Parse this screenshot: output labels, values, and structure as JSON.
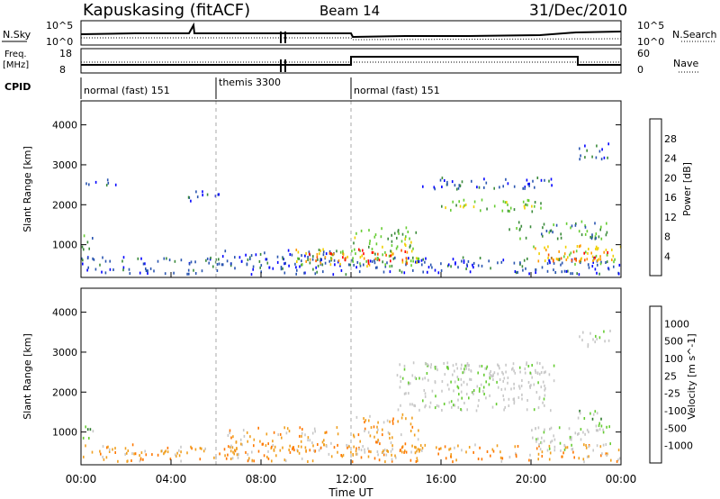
{
  "header": {
    "station": "Kapuskasing (fitACF)",
    "beam": "Beam 14",
    "date": "31/Dec/2010"
  },
  "top_panels": {
    "nsky_label": "N.Sky",
    "nsearch_label": "N.Search",
    "noise_ticks": [
      "10^5",
      "10^0"
    ],
    "freq_label_1": "Freq.",
    "freq_label_2": "[MHz]",
    "freq_ticks": [
      "18",
      "8"
    ],
    "nave_label": "Nave",
    "nave_ticks": [
      "60",
      "0"
    ],
    "cpid_label": "CPID"
  },
  "cpid_segments": [
    {
      "label": "normal (fast) 151",
      "start_h": 0,
      "end_h": 6
    },
    {
      "label": "themis 3300",
      "start_h": 6,
      "end_h": 12
    },
    {
      "label": "normal (fast) 151",
      "start_h": 12,
      "end_h": 24
    }
  ],
  "colors": {
    "power": [
      "#0000ff",
      "#2a55b0",
      "#3a8a3a",
      "#66cc33",
      "#f0d000",
      "#ff9900",
      "#ff5500",
      "#ff0000"
    ],
    "velocity": [
      "#0a14d8",
      "#2255cc",
      "#2c7a2c",
      "#66cc33",
      "#c8c8c8",
      "#c8c8c8",
      "#f0a020",
      "#ff7700",
      "#ff3300",
      "#ff0000"
    ],
    "ground_scatter": "#c8c8c8"
  },
  "chart_data": [
    {
      "type": "heatmap",
      "name": "power",
      "ylabel": "Slant Range [km]",
      "xlabel": "Time UT",
      "x_ticks": [
        "00:00",
        "04:00",
        "08:00",
        "12:00",
        "16:00",
        "20:00",
        "00:00"
      ],
      "x_range_h": [
        0,
        24
      ],
      "y_ticks": [
        "1000",
        "2000",
        "3000",
        "4000"
      ],
      "y_tick_values": [
        1000,
        2000,
        3000,
        4000
      ],
      "ylim": [
        180,
        4600
      ],
      "colorbar_label": "Power [dB]",
      "colorbar_ticks": [
        "4",
        "8",
        "12",
        "16",
        "20",
        "24",
        "28"
      ],
      "colorbar_range": [
        0,
        32
      ],
      "dashed_times_h": [
        6,
        12
      ],
      "regions": [
        {
          "t0": 0,
          "t1": 24,
          "r0": 220,
          "r1": 650,
          "level": 1
        },
        {
          "t0": 0,
          "t1": 0.6,
          "r0": 800,
          "r1": 1200,
          "level": 2
        },
        {
          "t0": 0.2,
          "t1": 1.6,
          "r0": 2450,
          "r1": 2650,
          "level": 1
        },
        {
          "t0": 4.5,
          "t1": 6.2,
          "r0": 2050,
          "r1": 2300,
          "level": 1
        },
        {
          "t0": 6.2,
          "t1": 11.5,
          "r0": 450,
          "r1": 850,
          "level": 1
        },
        {
          "t0": 9.5,
          "t1": 12.5,
          "r0": 450,
          "r1": 850,
          "level": 4
        },
        {
          "t0": 10,
          "t1": 12,
          "r0": 550,
          "r1": 750,
          "level": 6
        },
        {
          "t0": 12,
          "t1": 15,
          "r0": 420,
          "r1": 1400,
          "level": 3
        },
        {
          "t0": 12.3,
          "t1": 14.5,
          "r0": 450,
          "r1": 850,
          "level": 6
        },
        {
          "t0": 15,
          "t1": 21,
          "r0": 2350,
          "r1": 2650,
          "level": 1
        },
        {
          "t0": 16,
          "t1": 20.5,
          "r0": 1750,
          "r1": 2100,
          "level": 3
        },
        {
          "t0": 19,
          "t1": 23.5,
          "r0": 1100,
          "r1": 1550,
          "level": 2
        },
        {
          "t0": 20,
          "t1": 24,
          "r0": 450,
          "r1": 950,
          "level": 4
        },
        {
          "t0": 20.5,
          "t1": 23.5,
          "r0": 550,
          "r1": 800,
          "level": 6
        },
        {
          "t0": 22,
          "t1": 23.5,
          "r0": 3100,
          "r1": 3500,
          "level": 1
        }
      ]
    },
    {
      "type": "heatmap",
      "name": "velocity",
      "ylabel": "Slant Range [km]",
      "xlabel": "Time UT",
      "x_ticks": [
        "00:00",
        "04:00",
        "08:00",
        "12:00",
        "16:00",
        "20:00",
        "00:00"
      ],
      "x_range_h": [
        0,
        24
      ],
      "y_ticks": [
        "1000",
        "2000",
        "3000",
        "4000"
      ],
      "y_tick_values": [
        1000,
        2000,
        3000,
        4000
      ],
      "ylim": [
        180,
        4600
      ],
      "colorbar_label": "Velocity [m s^-1]",
      "colorbar_ticks": [
        "1000",
        "500",
        "100",
        "25",
        "-25",
        "-100",
        "-500",
        "-1000"
      ],
      "dashed_times_h": [
        6,
        12
      ],
      "regions": [
        {
          "t0": 0,
          "t1": 24,
          "r0": 220,
          "r1": 650,
          "level": 6
        },
        {
          "t0": 0,
          "t1": 0.6,
          "r0": 800,
          "r1": 1200,
          "level": 3
        },
        {
          "t0": 6.5,
          "t1": 11.5,
          "r0": 450,
          "r1": 1100,
          "level": 6
        },
        {
          "t0": 12,
          "t1": 15,
          "r0": 450,
          "r1": 1400,
          "level": 6
        },
        {
          "t0": 14,
          "t1": 21,
          "r0": 1500,
          "r1": 2700,
          "level": 4
        },
        {
          "t0": 15.5,
          "t1": 21,
          "r0": 2400,
          "r1": 2650,
          "level": 4
        },
        {
          "t0": 20,
          "t1": 23.5,
          "r0": 500,
          "r1": 1100,
          "level": 4
        },
        {
          "t0": 22,
          "t1": 23.5,
          "r0": 1000,
          "r1": 1500,
          "level": 3
        },
        {
          "t0": 22,
          "t1": 23.5,
          "r0": 3100,
          "r1": 3500,
          "level": 4
        }
      ]
    }
  ]
}
